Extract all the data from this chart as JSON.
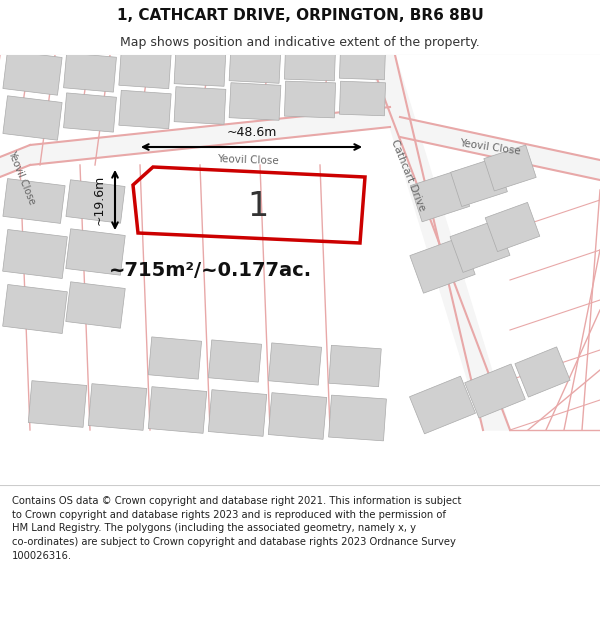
{
  "title": "1, CATHCART DRIVE, ORPINGTON, BR6 8BU",
  "subtitle": "Map shows position and indicative extent of the property.",
  "footnote_line1": "Contains OS data © Crown copyright and database right 2021. This information is subject",
  "footnote_line2": "to Crown copyright and database rights 2023 and is reproduced with the permission of",
  "footnote_line3": "HM Land Registry. The polygons (including the associated geometry, namely x, y",
  "footnote_line4": "co-ordinates) are subject to Crown copyright and database rights 2023 Ordnance Survey",
  "footnote_line5": "100026316.",
  "map_bg": "#ececec",
  "road_color": "#e8a8a8",
  "road_fill": "#f5f5f5",
  "block_color": "#d0d0d0",
  "plot_outline_color": "#cc0000",
  "plot_label": "1",
  "area_label": "~715m²/~0.177ac.",
  "width_label": "~48.6m",
  "height_label": "~19.6m",
  "title_fontsize": 11,
  "subtitle_fontsize": 9,
  "footnote_fontsize": 7.2
}
